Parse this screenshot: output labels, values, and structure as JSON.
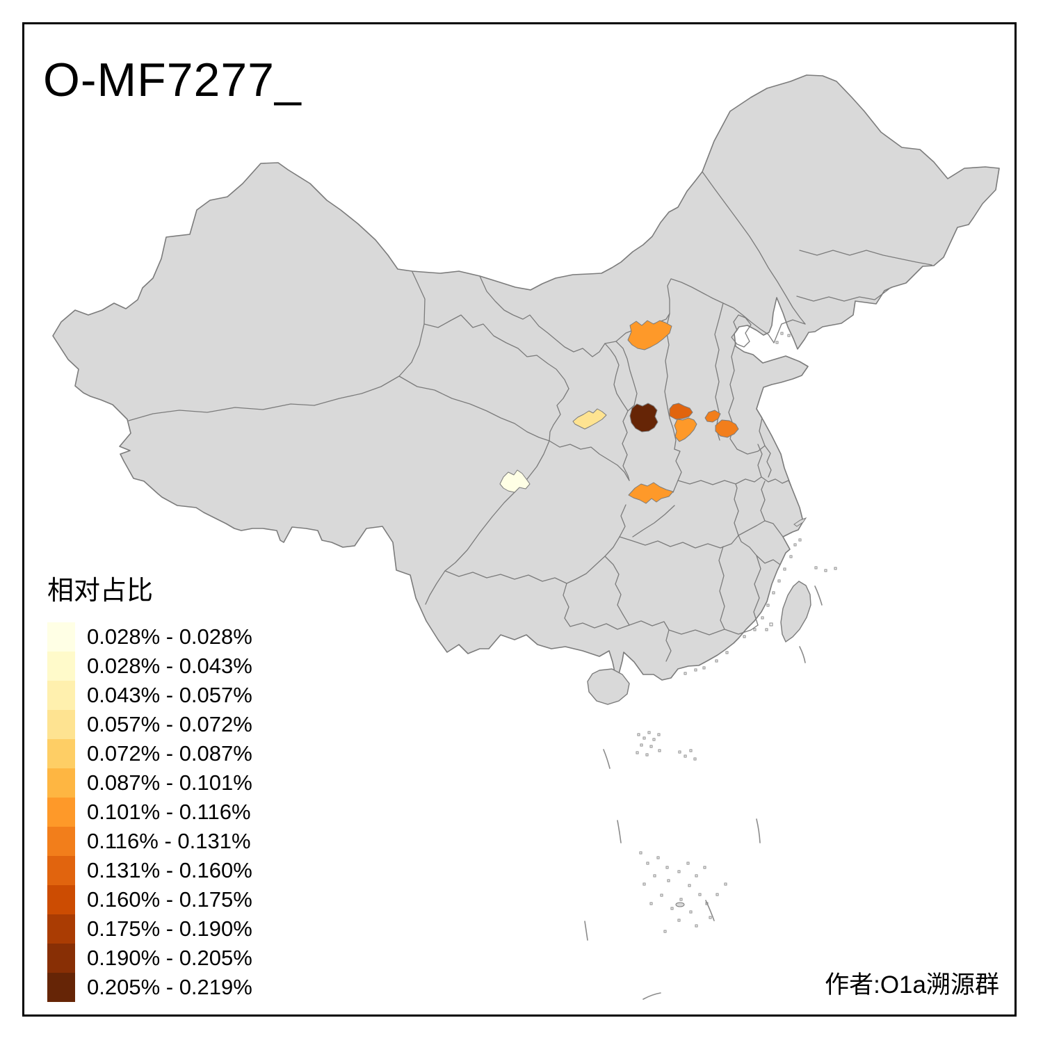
{
  "title": "O-MF7277_",
  "attribution": "作者:O1a溯源群",
  "legend": {
    "title": "相对占比",
    "items": [
      {
        "label": "0.028% - 0.028%",
        "color": "#FFFFE5"
      },
      {
        "label": "0.028% - 0.043%",
        "color": "#FFFACA"
      },
      {
        "label": "0.043% - 0.057%",
        "color": "#FFF0AE"
      },
      {
        "label": "0.057% - 0.072%",
        "color": "#FEE391"
      },
      {
        "label": "0.072% - 0.087%",
        "color": "#FECE65"
      },
      {
        "label": "0.087% - 0.101%",
        "color": "#FEB642"
      },
      {
        "label": "0.101% - 0.116%",
        "color": "#FE9929"
      },
      {
        "label": "0.116% - 0.131%",
        "color": "#F27E1B"
      },
      {
        "label": "0.131% - 0.160%",
        "color": "#E1640E"
      },
      {
        "label": "0.160% - 0.175%",
        "color": "#CC4C02"
      },
      {
        "label": "0.175% - 0.190%",
        "color": "#AA3C03"
      },
      {
        "label": "0.190% - 0.205%",
        "color": "#882F05"
      },
      {
        "label": "0.205% - 0.219%",
        "color": "#662506"
      }
    ]
  },
  "map": {
    "land_fill": "#D9D9D9",
    "border_color": "#7B7B7B",
    "sea_color": "#FFFFFF",
    "frame_color": "#000000"
  },
  "chart_data": {
    "type": "choropleth",
    "title": "O-MF7277_",
    "legend_title": "相对占比",
    "unit": "%",
    "value_range": [
      0.028,
      0.219
    ],
    "class_breaks": [
      0.028,
      0.028,
      0.043,
      0.057,
      0.072,
      0.087,
      0.101,
      0.116,
      0.131,
      0.16,
      0.175,
      0.19,
      0.205,
      0.219
    ],
    "palette": [
      "#FFFFE5",
      "#FFFACA",
      "#FFF0AE",
      "#FEE391",
      "#FECE65",
      "#FEB642",
      "#FE9929",
      "#F27E1B",
      "#E1640E",
      "#CC4C02",
      "#AA3C03",
      "#882F05",
      "#662506"
    ],
    "highlighted_regions": [
      {
        "id": "inner-mongolia-ordos-area",
        "class": "0.101% - 0.116%",
        "color": "#FE9929"
      },
      {
        "id": "central-gansu-area",
        "class": "0.057% - 0.072%",
        "color": "#FEE391"
      },
      {
        "id": "north-shaanxi-area",
        "class": "0.205% - 0.219%",
        "color": "#662506"
      },
      {
        "id": "west-shanxi-area",
        "class": "0.131% - 0.160%",
        "color": "#E1640E"
      },
      {
        "id": "central-shanxi-area",
        "class": "0.101% - 0.116%",
        "color": "#FE9929"
      },
      {
        "id": "north-henan-west-area",
        "class": "0.116% - 0.131%",
        "color": "#F27E1B"
      },
      {
        "id": "north-henan-east-area",
        "class": "0.116% - 0.131%",
        "color": "#F27E1B"
      },
      {
        "id": "chengdu-sichuan-area",
        "class": "0.028% - 0.028%",
        "color": "#FFFFE5"
      },
      {
        "id": "south-shaanxi-area",
        "class": "0.101% - 0.116%",
        "color": "#FE9929"
      }
    ]
  }
}
